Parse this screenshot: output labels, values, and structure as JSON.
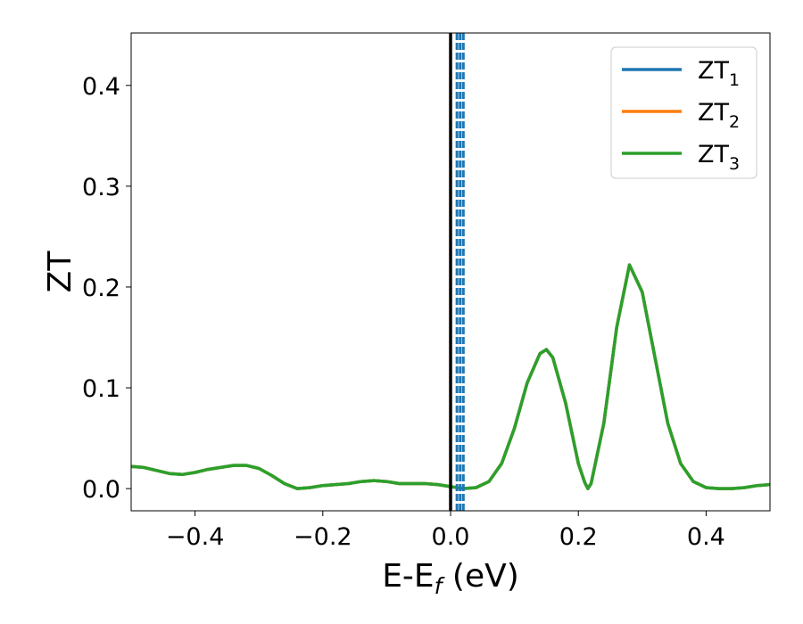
{
  "chart_data": {
    "type": "line",
    "title": "",
    "xlabel": {
      "main": "E-E",
      "sub": "f",
      "unit": " (eV)"
    },
    "ylabel": "ZT",
    "xlim": [
      -0.5,
      0.5
    ],
    "ylim": [
      -0.022,
      0.452
    ],
    "xticks": [
      -0.4,
      -0.2,
      0.0,
      0.2,
      0.4
    ],
    "xtick_labels": [
      "−0.4",
      "−0.2",
      "0.0",
      "0.2",
      "0.4"
    ],
    "yticks": [
      0.0,
      0.1,
      0.2,
      0.3,
      0.4
    ],
    "ytick_labels": [
      "0.0",
      "0.1",
      "0.2",
      "0.3",
      "0.4"
    ],
    "grid": false,
    "legend_position": "top-right",
    "x": [
      -0.5,
      -0.48,
      -0.46,
      -0.44,
      -0.42,
      -0.4,
      -0.38,
      -0.36,
      -0.34,
      -0.32,
      -0.3,
      -0.28,
      -0.26,
      -0.24,
      -0.22,
      -0.2,
      -0.18,
      -0.16,
      -0.14,
      -0.12,
      -0.1,
      -0.08,
      -0.06,
      -0.04,
      -0.02,
      0.0,
      0.02,
      0.04,
      0.06,
      0.08,
      0.1,
      0.12,
      0.14,
      0.15,
      0.16,
      0.18,
      0.2,
      0.21,
      0.215,
      0.22,
      0.24,
      0.26,
      0.28,
      0.3,
      0.32,
      0.34,
      0.36,
      0.38,
      0.4,
      0.42,
      0.44,
      0.46,
      0.48,
      0.5
    ],
    "series": [
      {
        "name": "ZT",
        "sub": "1",
        "color": "#1f77b4",
        "values": [
          0.022,
          0.021,
          0.018,
          0.015,
          0.014,
          0.016,
          0.019,
          0.021,
          0.023,
          0.023,
          0.02,
          0.013,
          0.005,
          0.0,
          0.001,
          0.003,
          0.004,
          0.005,
          0.007,
          0.008,
          0.007,
          0.005,
          0.005,
          0.005,
          0.004,
          0.002,
          0.0,
          0.001,
          0.007,
          0.025,
          0.06,
          0.105,
          0.134,
          0.138,
          0.13,
          0.085,
          0.025,
          0.006,
          0.0,
          0.005,
          0.065,
          0.16,
          0.222,
          0.195,
          0.13,
          0.065,
          0.025,
          0.007,
          0.001,
          0.0,
          0.0,
          0.001,
          0.003,
          0.004
        ]
      },
      {
        "name": "ZT",
        "sub": "2",
        "color": "#ff7f0e",
        "values": [
          0.022,
          0.021,
          0.018,
          0.015,
          0.014,
          0.016,
          0.019,
          0.021,
          0.023,
          0.023,
          0.02,
          0.013,
          0.005,
          0.0,
          0.001,
          0.003,
          0.004,
          0.005,
          0.007,
          0.008,
          0.007,
          0.005,
          0.005,
          0.005,
          0.004,
          0.002,
          0.0,
          0.001,
          0.007,
          0.025,
          0.06,
          0.105,
          0.134,
          0.138,
          0.13,
          0.085,
          0.025,
          0.006,
          0.0,
          0.005,
          0.065,
          0.16,
          0.222,
          0.195,
          0.13,
          0.065,
          0.025,
          0.007,
          0.001,
          0.0,
          0.0,
          0.001,
          0.003,
          0.004
        ]
      },
      {
        "name": "ZT",
        "sub": "3",
        "color": "#2ca02c",
        "values": [
          0.022,
          0.021,
          0.018,
          0.015,
          0.014,
          0.016,
          0.019,
          0.021,
          0.023,
          0.023,
          0.02,
          0.013,
          0.005,
          0.0,
          0.001,
          0.003,
          0.004,
          0.005,
          0.007,
          0.008,
          0.007,
          0.005,
          0.005,
          0.005,
          0.004,
          0.002,
          0.0,
          0.001,
          0.007,
          0.025,
          0.06,
          0.105,
          0.134,
          0.138,
          0.13,
          0.085,
          0.025,
          0.006,
          0.0,
          0.005,
          0.065,
          0.16,
          0.222,
          0.195,
          0.13,
          0.065,
          0.025,
          0.007,
          0.001,
          0.0,
          0.0,
          0.001,
          0.003,
          0.004
        ]
      }
    ],
    "vertical_lines": [
      {
        "x": 0.0,
        "color": "#000000",
        "style": "solid"
      },
      {
        "x": 0.01,
        "color": "#1f77b4",
        "style": "dashed"
      },
      {
        "x": 0.015,
        "color": "#1f77b4",
        "style": "dashed"
      },
      {
        "x": 0.02,
        "color": "#1f77b4",
        "style": "dashed"
      }
    ]
  }
}
